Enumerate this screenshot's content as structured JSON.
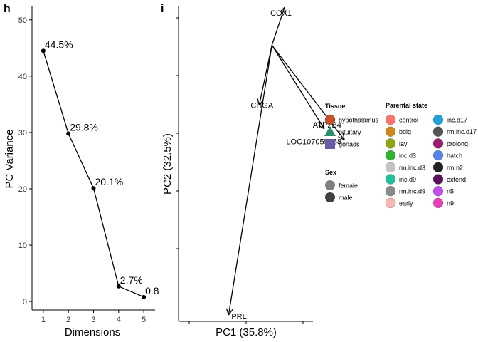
{
  "chart_data": [
    {
      "panel": "h",
      "type": "line",
      "xlabel": "Dimensions",
      "ylabel": "PC Variance",
      "xlim": [
        0.55,
        5.45
      ],
      "ylim": [
        -1.5,
        52.5
      ],
      "x_ticks": [
        "1",
        "2",
        "3",
        "4",
        "5"
      ],
      "y_ticks": [
        "0",
        "10",
        "20",
        "30",
        "40",
        "50"
      ],
      "x": [
        1,
        2,
        3,
        4,
        5
      ],
      "values": [
        44.5,
        29.8,
        20.1,
        2.7,
        0.8
      ],
      "data_labels": [
        "44.5%",
        "29.8%",
        "20.1%",
        "2.7%",
        "0.8"
      ]
    },
    {
      "panel": "i",
      "type": "biplot",
      "xlabel": "PC1 (35.8%)",
      "ylabel": "PC2 (32.5%)",
      "xlim": [
        -0.95,
        0.85
      ],
      "ylim": [
        -1.15,
        0.85
      ],
      "x_tick_count": 3,
      "y_tick_count": 5,
      "origin": [
        0.3,
        0.6
      ],
      "vectors": [
        {
          "label": "COX1",
          "x": 0.47,
          "y": 0.84
        },
        {
          "label": "CHGA",
          "x": 0.13,
          "y": 0.22
        },
        {
          "label": "ATP2B4",
          "x": 1.0,
          "y": 0.07
        },
        {
          "label": "LOC107055658",
          "x": 1.27,
          "y": 0.0
        },
        {
          "label": "PRL",
          "x": -0.28,
          "y": -1.11
        }
      ]
    }
  ],
  "legend": {
    "tissue": {
      "title": "Tissue",
      "items": [
        {
          "label": "hypothalamus",
          "shape": "circle",
          "color": "#c8502a"
        },
        {
          "label": "pituitary",
          "shape": "triangle",
          "color": "#2e8b6b"
        },
        {
          "label": "gonads",
          "shape": "square",
          "color": "#6a5aa8"
        }
      ]
    },
    "sex": {
      "title": "Sex",
      "items": [
        {
          "label": "female",
          "color": "#808080"
        },
        {
          "label": "male",
          "color": "#404040"
        }
      ]
    },
    "parental_state": {
      "title": "Parental state",
      "columns": [
        [
          {
            "label": "control",
            "color": "#f8766d"
          },
          {
            "label": "bdlg",
            "color": "#cd8a1a"
          },
          {
            "label": "lay",
            "color": "#8da414"
          },
          {
            "label": "inc.d3",
            "color": "#2eb230"
          },
          {
            "label": "rm.inc.d3",
            "color": "#c3c3c3"
          },
          {
            "label": "inc.d9",
            "color": "#1fbf9a"
          },
          {
            "label": "rm.inc.d9",
            "color": "#8a8a8a"
          },
          {
            "label": "early",
            "color": "#f8b6b0"
          }
        ],
        [
          {
            "label": "inc.d17",
            "color": "#20a2dc"
          },
          {
            "label": "rm.inc.d17",
            "color": "#555555"
          },
          {
            "label": "prolong",
            "color": "#9b1f6a"
          },
          {
            "label": "hatch",
            "color": "#5b82e8"
          },
          {
            "label": "rm.n2",
            "color": "#222222"
          },
          {
            "label": "extend",
            "color": "#5a1058"
          },
          {
            "label": "n5",
            "color": "#c44ee8"
          },
          {
            "label": "n9",
            "color": "#e840b8"
          }
        ]
      ]
    }
  }
}
